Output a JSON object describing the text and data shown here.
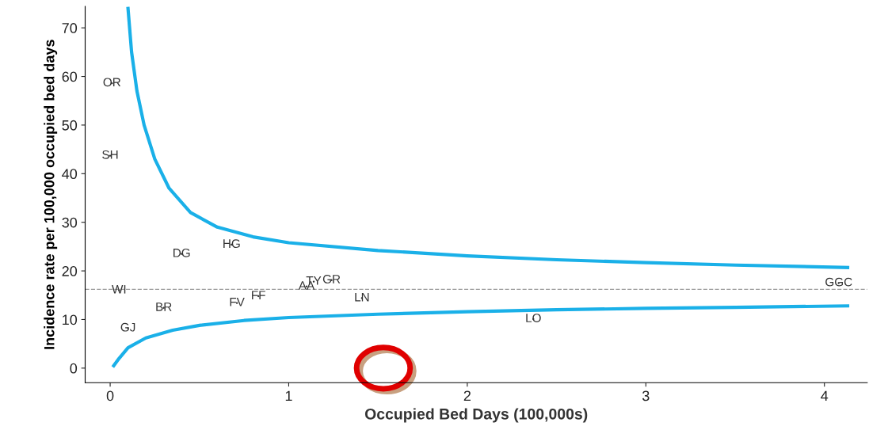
{
  "chart_data": {
    "type": "line",
    "xlabel": "Occupied Bed Days (100,000s)",
    "ylabel": "Incidence rate per 100,000 occupied bed days",
    "xlim": [
      -0.14,
      4.24
    ],
    "ylim": [
      -3,
      74.4
    ],
    "xticks": [
      0,
      1,
      2,
      3,
      4
    ],
    "yticks": [
      0,
      10,
      20,
      30,
      40,
      50,
      60,
      70
    ],
    "grid": false,
    "legend": false,
    "marker": "none",
    "line_style": "solid",
    "series": [
      {
        "color": "#1ab0e8",
        "x": [
          0.1,
          0.12,
          0.15,
          0.19,
          0.25,
          0.33,
          0.45,
          0.6,
          0.8,
          1.0,
          1.5,
          2.0,
          2.5,
          3.0,
          3.5,
          4.13
        ],
        "values": [
          74,
          65,
          57,
          50,
          43,
          37,
          32,
          29,
          27,
          25.8,
          24.2,
          23.1,
          22.3,
          21.7,
          21.2,
          20.7
        ]
      },
      {
        "color": "#1ab0e8",
        "x": [
          0.02,
          0.05,
          0.1,
          0.2,
          0.35,
          0.5,
          0.75,
          1.0,
          1.5,
          2.0,
          2.5,
          3.0,
          3.5,
          4.13
        ],
        "values": [
          0.5,
          2,
          4.2,
          6.2,
          7.8,
          8.8,
          9.8,
          10.4,
          11.1,
          11.6,
          12,
          12.3,
          12.5,
          12.8
        ]
      },
      {
        "type": "scatter",
        "marker": "circle",
        "color": "#333333",
        "x": [
          0.01,
          0.0,
          0.4,
          0.68,
          0.05,
          0.3,
          0.1,
          0.71,
          0.83,
          1.1,
          1.14,
          1.24,
          1.41,
          2.37,
          4.08
        ],
        "values": [
          58.6,
          43.7,
          23.5,
          25.4,
          16.0,
          12.4,
          8.2,
          13.4,
          14.8,
          16.8,
          17.8,
          18.1,
          14.4,
          10.1,
          17.5
        ],
        "value_labels": [
          "OR",
          "SH",
          "DG",
          "HG",
          "WI",
          "BR",
          "GJ",
          "FV",
          "FF",
          "AA",
          "TY",
          "GR",
          "LN",
          "LO",
          "GGC"
        ]
      }
    ],
    "ref_lines": [
      {
        "axis": "y",
        "value": 16.2,
        "label": null,
        "color": "#999999",
        "line_style": "dashed"
      }
    ]
  }
}
